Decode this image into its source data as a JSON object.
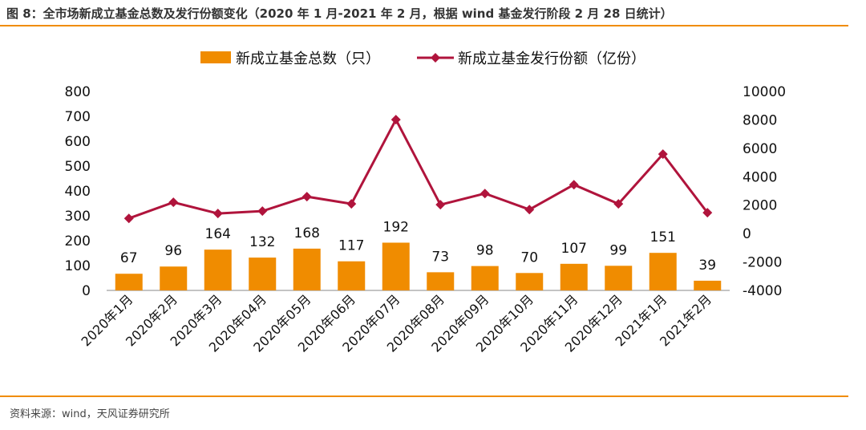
{
  "title": "图 8：全市场新成立基金总数及发行份额变化（2020 年 1 月-2021 年 2 月，根据 wind 基金发行阶段 2 月 28 日统计）",
  "source": "资料来源：wind，天风证券研究所",
  "colors": {
    "bar": "#F08C00",
    "line": "#B0143C",
    "rule": "#F08C00"
  },
  "chart_data": {
    "type": "bar+line",
    "categories": [
      "2020年1月",
      "2020年2月",
      "2020年3月",
      "2020年04月",
      "2020年05月",
      "2020年06月",
      "2020年07月",
      "2020年08月",
      "2020年09月",
      "2020年10月",
      "2020年11月",
      "2020年12月",
      "2021年1月",
      "2021年2月"
    ],
    "series": [
      {
        "name": "新成立基金总数（只）",
        "type": "bar",
        "axis": "left",
        "values": [
          67,
          96,
          164,
          132,
          168,
          117,
          192,
          73,
          98,
          70,
          107,
          99,
          151,
          39
        ]
      },
      {
        "name": "新成立基金发行份额（亿份）",
        "type": "line",
        "axis": "right",
        "values": [
          1070,
          2200,
          1410,
          1580,
          2600,
          2090,
          8020,
          2030,
          2820,
          1690,
          3440,
          2090,
          5590,
          1470
        ]
      }
    ],
    "ylim_left": [
      0,
      800
    ],
    "yticks_left": [
      "0",
      "100",
      "200",
      "300",
      "400",
      "500",
      "600",
      "700",
      "800"
    ],
    "ylim_right": [
      -4000,
      10000
    ],
    "yticks_right": [
      "-4000",
      "-2000",
      "0",
      "2000",
      "4000",
      "6000",
      "8000",
      "10000"
    ],
    "legend": "top",
    "grid": false
  }
}
